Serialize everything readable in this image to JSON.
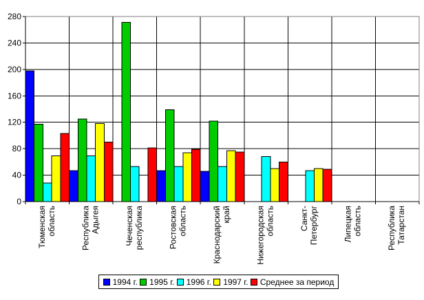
{
  "chart_data": {
    "type": "bar",
    "title": "",
    "xlabel": "",
    "ylabel": "",
    "ylim": [
      0,
      280
    ],
    "yticks": [
      0,
      40,
      80,
      120,
      160,
      200,
      240,
      280
    ],
    "grid": true,
    "legend_position": "bottom",
    "categories": [
      "Тюменская область",
      "Республика Адыгея",
      "Чеченская республика",
      "Ростовская область",
      "Краснодарский край",
      "Нижегородская область",
      "Санкт-Петербург",
      "Липецкая область",
      "Республика Татарстан"
    ],
    "category_lines": [
      [
        "Тюменская",
        "область"
      ],
      [
        "Республика",
        "Адыгея"
      ],
      [
        "Чеченская",
        "республика"
      ],
      [
        "Ростовская",
        "область"
      ],
      [
        "Краснодарский",
        "край"
      ],
      [
        "Нижегородская",
        "область"
      ],
      [
        "Санкт-",
        "Петербург"
      ],
      [
        "Липецкая",
        "область"
      ],
      [
        "Республика",
        "Татарстан"
      ]
    ],
    "series": [
      {
        "name": "1994 г.",
        "color": "#0000ff",
        "values": [
          198,
          47,
          null,
          47,
          46,
          null,
          null,
          null,
          null
        ]
      },
      {
        "name": "1995 г.",
        "color": "#00cc00",
        "values": [
          117,
          125,
          271,
          139,
          122,
          null,
          null,
          null,
          null
        ]
      },
      {
        "name": "1996 г.",
        "color": "#00ffff",
        "values": [
          28,
          69,
          53,
          53,
          53,
          68,
          47,
          null,
          null
        ]
      },
      {
        "name": "1997 г.",
        "color": "#ffff00",
        "values": [
          69,
          118,
          null,
          74,
          77,
          50,
          50,
          null,
          null
        ]
      },
      {
        "name": "Среднее за период",
        "color": "#ff0000",
        "values": [
          103,
          90,
          81,
          79,
          75,
          60,
          49,
          null,
          null
        ]
      }
    ]
  }
}
